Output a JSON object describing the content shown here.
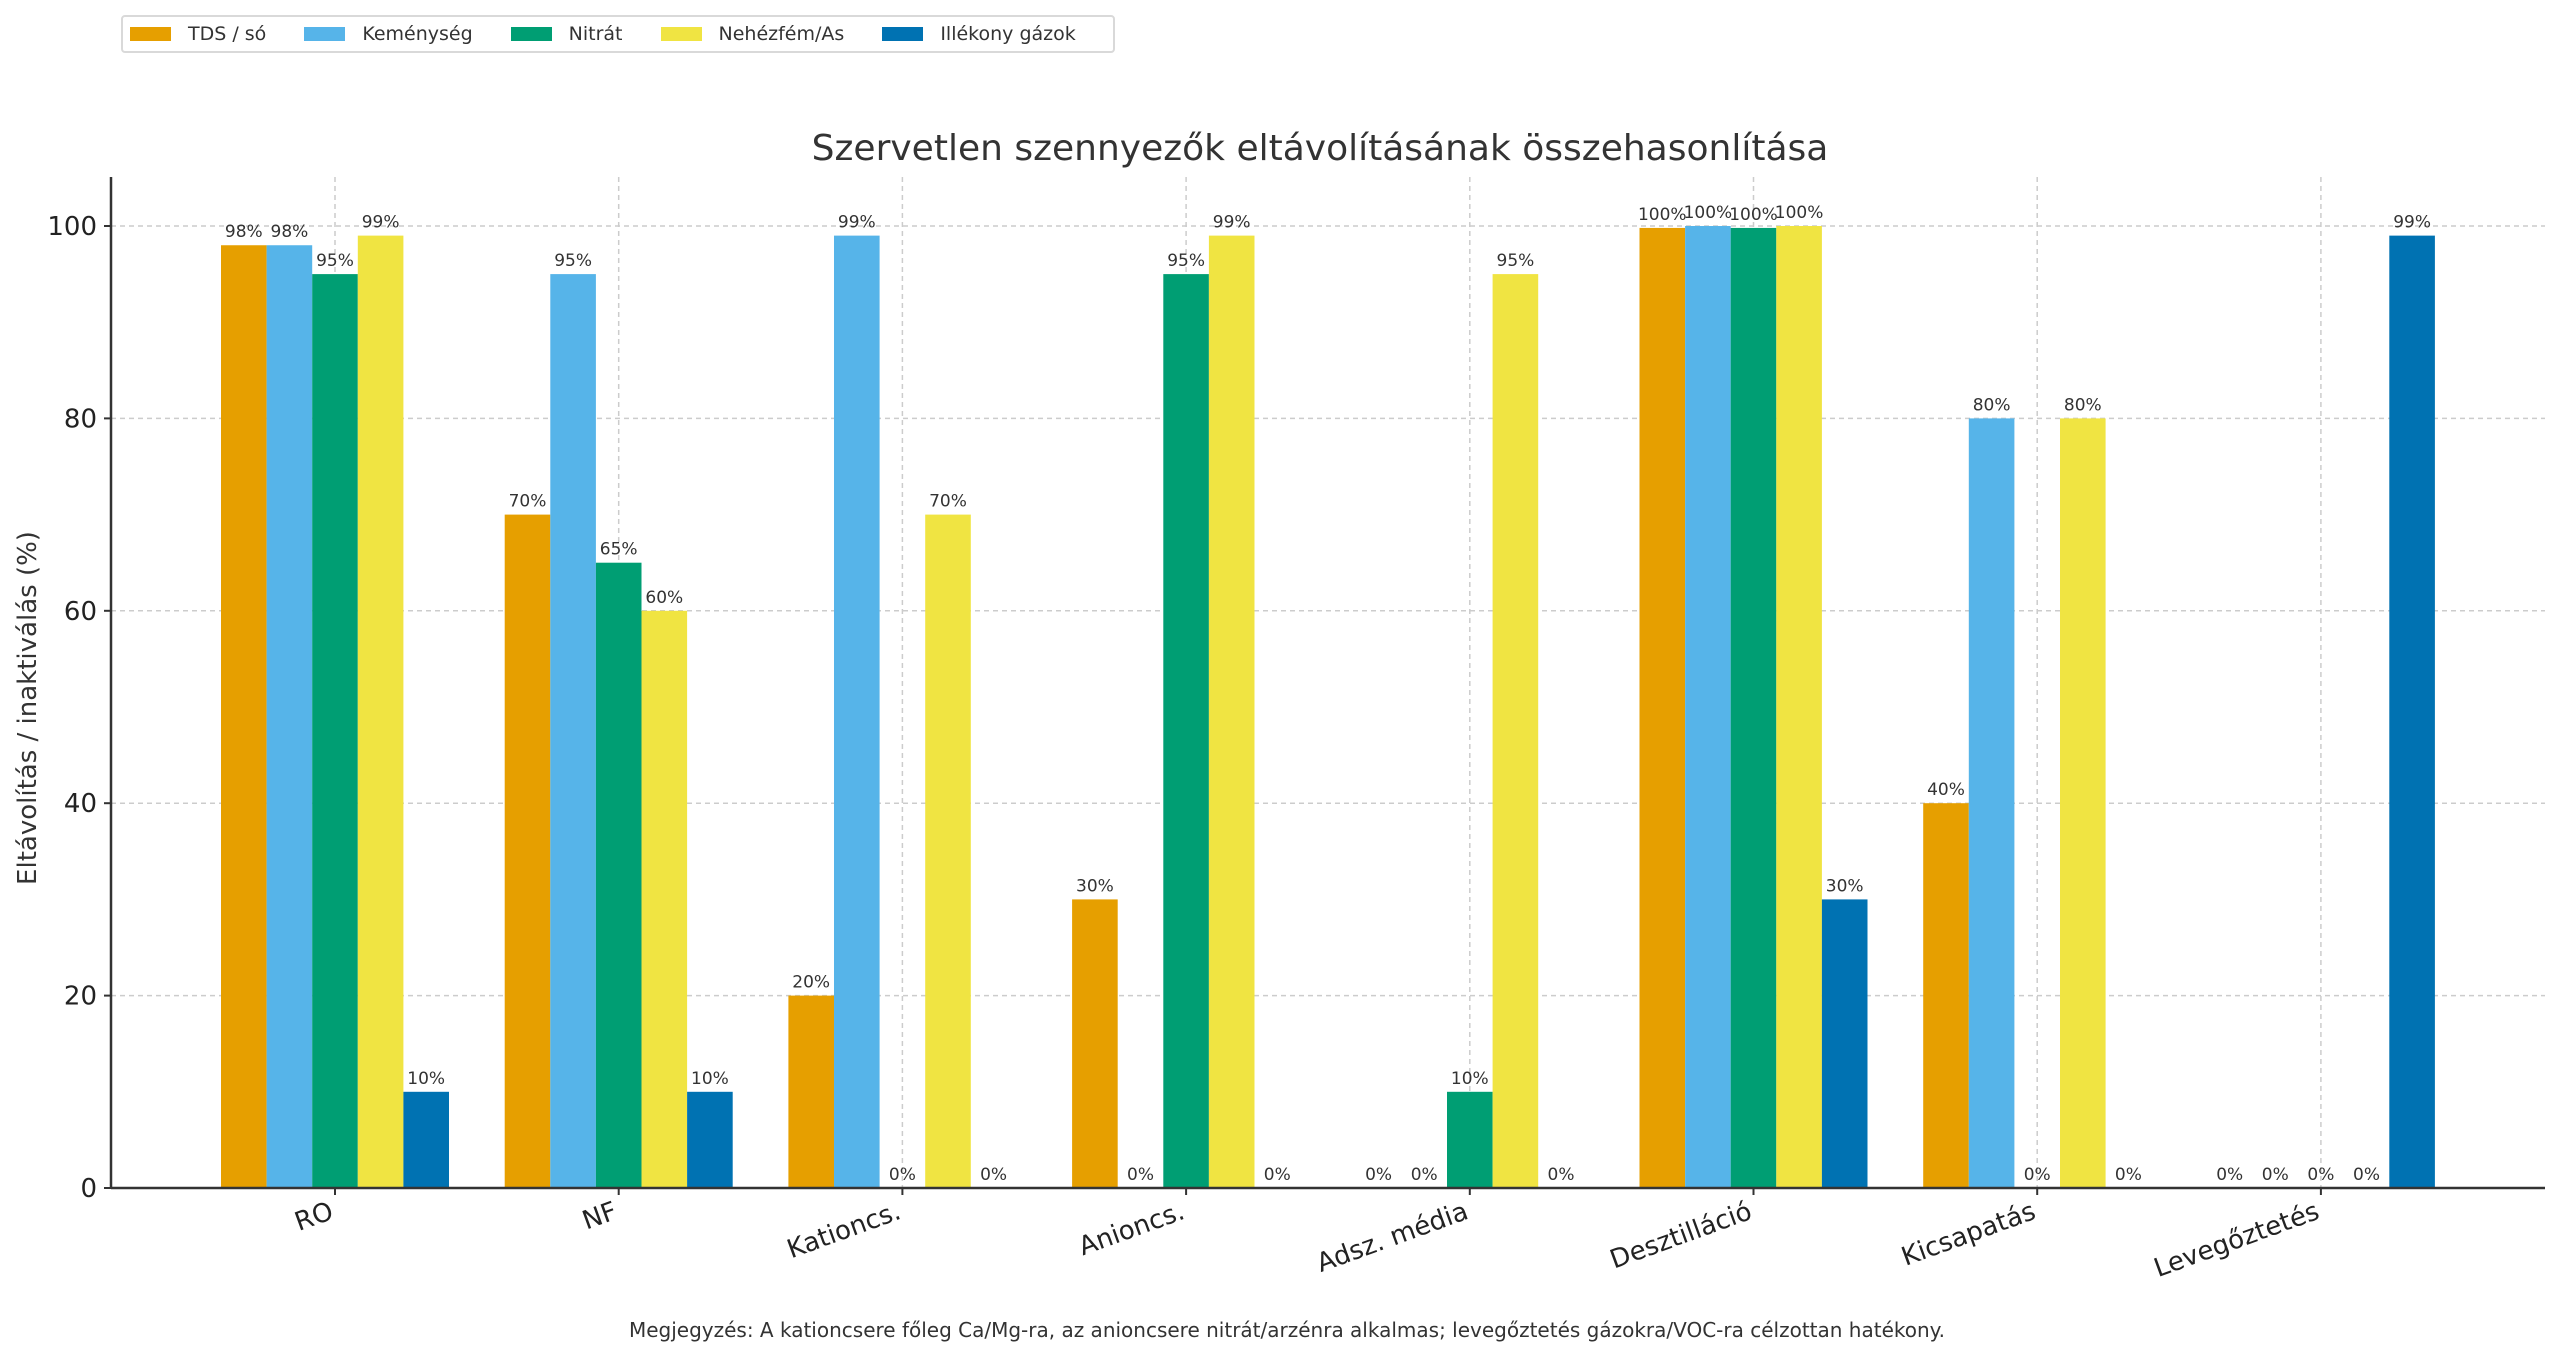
{
  "chart_data": {
    "type": "bar",
    "title": "Szervetlen szennyezők eltávolításának összehasonlítása",
    "xlabel": "",
    "ylabel": "Eltávolítás / inaktiválás (%)",
    "ylim": [
      0,
      105
    ],
    "yticks": [
      0,
      20,
      40,
      60,
      80,
      100
    ],
    "grid": true,
    "legend_position": "top-left (outside, above plot)",
    "categories": [
      "RO",
      "NF",
      "Kationcs.",
      "Anioncs.",
      "Adsz. média",
      "Desztilláció",
      "Kicsapatás",
      "Levegőztetés"
    ],
    "series": [
      {
        "name": "TDS / só",
        "color": "#E69F00",
        "values": [
          98,
          70,
          20,
          30,
          0,
          99.8,
          40,
          0
        ]
      },
      {
        "name": "Keménység",
        "color": "#56B4E9",
        "values": [
          98,
          95,
          99,
          0,
          0,
          100,
          80,
          0
        ]
      },
      {
        "name": "Nitrát",
        "color": "#009E73",
        "values": [
          95,
          65,
          0,
          95,
          10,
          99.8,
          0,
          0
        ]
      },
      {
        "name": "Nehézfém/As",
        "color": "#F0E442",
        "values": [
          99,
          60,
          70,
          99,
          95,
          100,
          80,
          0
        ]
      },
      {
        "name": "Illékony gázok",
        "color": "#0072B2",
        "values": [
          10,
          10,
          0,
          0,
          0,
          30,
          0,
          99
        ]
      }
    ],
    "value_label_format": "{v}%",
    "annotation": "Megjegyzés: A kationcsere főleg Ca/Mg-ra, az anioncsere nitrát/arzénra alkalmas; levegőztetés gázokra/VOC-ra célzottan hatékony."
  }
}
